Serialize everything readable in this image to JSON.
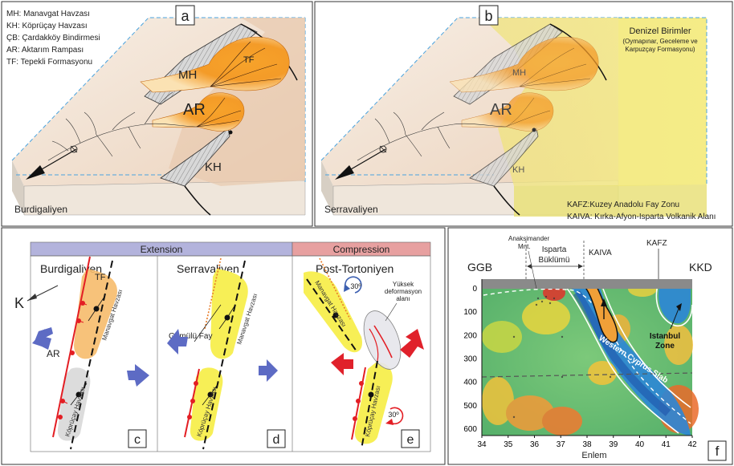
{
  "panel_letters": {
    "a": "a",
    "b": "b",
    "c": "c",
    "d": "d",
    "e": "e",
    "f": "f"
  },
  "legend_a": [
    "MH: Manavgat Havzası",
    "KH: Köprüçay Havzası",
    "ÇB: Çardakköy Bindirmesi",
    "AR: Aktarım Rampası",
    "TF: Tepekli Formasyonu"
  ],
  "block_a": {
    "mh": "MH",
    "tf": "TF",
    "ar": "AR",
    "kh": "KH",
    "age": "Burdigaliyen"
  },
  "block_b": {
    "marine_title": "Denizel Birimler",
    "marine_sub_1": "(Oymapınar, Geceleme ve",
    "marine_sub_2": "Karpuzçay Formasyonu)",
    "mh": "MH",
    "ar": "AR",
    "kh": "KH",
    "age": "Serravaliyen",
    "note_1": "KAFZ:Kuzey Anadolu Fay Zonu",
    "note_2": "KAIVA: Kırka-Afyon-Isparta Volkanik Alanı"
  },
  "panel_c": {
    "header": "Extension",
    "title": "Burdigaliyen",
    "k": "K",
    "tf": "TF",
    "ar": "AR",
    "basin_top": "Manavgat Havzası",
    "basin_bottom": "Köprüçay Havzası"
  },
  "panel_d": {
    "title": "Serravaliyen",
    "fault": "Gömülü Fay",
    "basin_top": "Manavgat Havzası",
    "basin_bottom": "Köprüçay Havzası"
  },
  "panel_e": {
    "header": "Compression",
    "title": "Post-Tortoniyen",
    "rot_top": "30º",
    "rot_bottom": "30º",
    "zone_1": "Yüksek",
    "zone_2": "deformasyon",
    "zone_3": "alanı",
    "basin_top": "Manavgat Havzası",
    "basin_bottom": "Köprüçay Havzası"
  },
  "panel_f": {
    "left_end": "GGB",
    "right_end": "KKD",
    "anaks_1": "Anaksimander",
    "anaks_2": "Mnt.",
    "isparta_1": "Isparta",
    "isparta_2": "Büklümü",
    "kaiva": "KAIVA",
    "kafz": "KAFZ",
    "slab": "Western Cyprus Slab",
    "zone_1": "Istanbul",
    "zone_2": "Zone",
    "xlabel": "Enlem",
    "xticks": [
      "34",
      "35",
      "36",
      "37",
      "38",
      "39",
      "40",
      "41",
      "42"
    ],
    "yticks": [
      "0",
      "100",
      "200",
      "300",
      "400",
      "500",
      "600"
    ]
  },
  "colors": {
    "block_face": "#f0d9c4",
    "block_side": "#e8ddd0",
    "orange": "#f39a1e",
    "marine": "#f2ea7a",
    "ext_header": "#b3b3dc",
    "comp_header": "#e7a0a0",
    "arrow_blue": "#5d6bc4",
    "arrow_red": "#e0212b",
    "fault_red": "#e31e24",
    "basin_yellow": "#f7ef56",
    "basin_gray": "#dcdcdc"
  }
}
